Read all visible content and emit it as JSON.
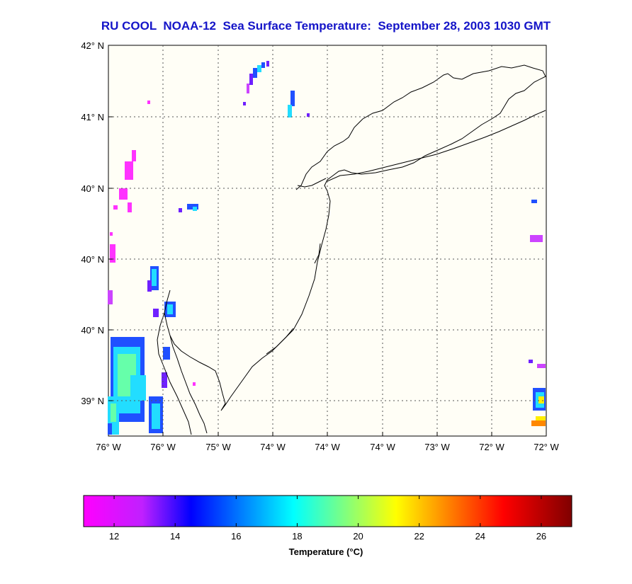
{
  "title": "RU COOL  NOAA-12  Sea Surface Temperature:  September 28, 2003 1030 GMT",
  "map": {
    "lat_tick_labels": [
      "42° N",
      "41° N",
      "40° N",
      "40° N",
      "40° N",
      "39° N"
    ],
    "lon_tick_labels": [
      "76° W",
      "76° W",
      "75° W",
      "74° W",
      "74° W",
      "74° W",
      "73° W",
      "72° W",
      "72° W"
    ],
    "grid": true,
    "land_color": "#fffef6",
    "coast_color": "#000000",
    "sst_patch_colors": [
      "#ff33ff",
      "#cc44ff",
      "#6f20ff",
      "#2050ff",
      "#22ddff",
      "#66ffaa",
      "#ffee00",
      "#ff8800"
    ]
  },
  "colorbar": {
    "tick_labels": [
      "12",
      "14",
      "16",
      "18",
      "20",
      "22",
      "24",
      "26"
    ],
    "label": "Temperature (°C)",
    "range": [
      11,
      27
    ],
    "colors": [
      "#ff00ff",
      "#0000ff",
      "#00ffff",
      "#ffff00",
      "#ff0000",
      "#800000"
    ]
  }
}
